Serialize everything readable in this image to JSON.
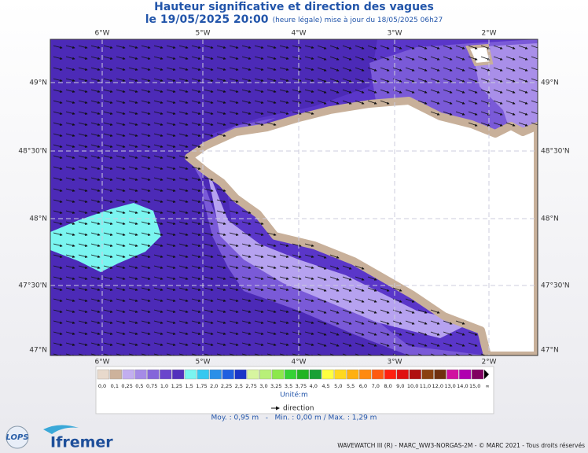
{
  "header": {
    "title": "Hauteur significative et direction des vagues",
    "date": "le 19/05/2025 20:00",
    "update": "(heure légale) mise à jour du 18/05/2025 06h27"
  },
  "map": {
    "lon_labels": [
      "6°W",
      "5°W",
      "4°W",
      "3°W",
      "2°W"
    ],
    "lat_labels": [
      "49°N",
      "48°30'N",
      "48°N",
      "47°30'N",
      "47°N"
    ]
  },
  "legend": {
    "colors": [
      "#e8d9cc",
      "#cdb29b",
      "#c2aef0",
      "#a58be6",
      "#8466da",
      "#6a45cc",
      "#5230bc",
      "#7af5f0",
      "#35c8f0",
      "#2a8fe8",
      "#1f5fe0",
      "#1a35c8",
      "#d7f5a0",
      "#b8f078",
      "#8ce84a",
      "#35d235",
      "#22b422",
      "#18a035",
      "#ffff40",
      "#ffd820",
      "#ffb010",
      "#ff8a10",
      "#ff5a10",
      "#ff2010",
      "#e01010",
      "#b01010",
      "#8a4010",
      "#703010",
      "#d010a0",
      "#b000b0",
      "#800060"
    ],
    "labels": [
      "0,0",
      "0,1",
      "0,25",
      "0,5",
      "0,75",
      "1,0",
      "1,25",
      "1,5",
      "1,75",
      "2,0",
      "2,25",
      "2,5",
      "2,75",
      "3,0",
      "3,25",
      "3,5",
      "3,75",
      "4,0",
      "4,5",
      "5,0",
      "5,5",
      "6,0",
      "7,0",
      "8,0",
      "9,0",
      "10,0",
      "11,0",
      "12,0",
      "13,0",
      "14,0",
      "15,0",
      "∞"
    ],
    "unit": "Unité:m",
    "direction": "direction",
    "stats": "Moy. : 0,95 m   -   Min. : 0,00 m / Max. : 1,29 m"
  },
  "footer": {
    "credits": "WAVEWATCH III (R) - MARC_WW3-NORGAS-2M - © MARC 2021 - Tous droits réservés",
    "logo1": "LOPS",
    "logo2": "Ifremer"
  }
}
